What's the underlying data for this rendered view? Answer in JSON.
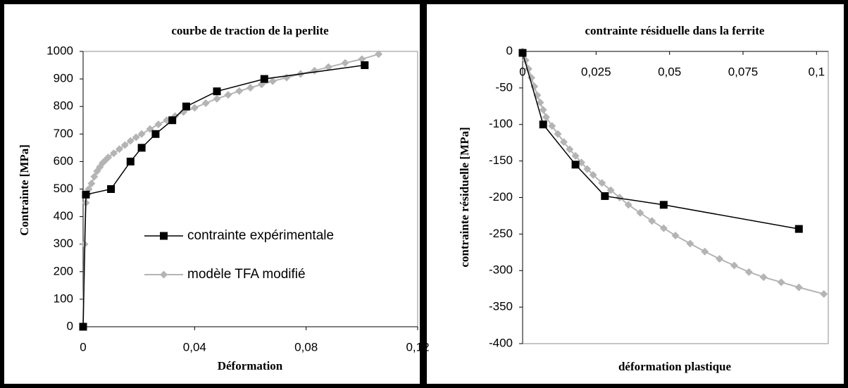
{
  "chart_data": [
    {
      "type": "line",
      "title": "courbe de traction de la perlite",
      "xlabel": "Déformation",
      "ylabel": "Contrainte [MPa]",
      "xlim": [
        0,
        0.12
      ],
      "xticks": [
        0,
        {
          "value": 0.04,
          "label": "0,04"
        },
        {
          "value": 0.08,
          "label": "0,08"
        },
        {
          "value": 0.12,
          "label": "0,12"
        }
      ],
      "ylim": [
        0,
        1000
      ],
      "yticks": [
        0,
        100,
        200,
        300,
        400,
        500,
        600,
        700,
        800,
        900,
        1000
      ],
      "legend": "lower right",
      "series": [
        {
          "name": "contrainte expérimentale",
          "color": "#000000",
          "marker": "square",
          "x": [
            0,
            0.001,
            0.01,
            0.017,
            0.021,
            0.026,
            0.032,
            0.037,
            0.048,
            0.065,
            0.101
          ],
          "values": [
            0,
            480,
            500,
            600,
            650,
            700,
            750,
            800,
            855,
            900,
            950
          ]
        },
        {
          "name": "modèle TFA modifié",
          "color": "#b4b4b4",
          "marker": "diamond",
          "x": [
            0,
            0.0005,
            0.001,
            0.0015,
            0.002,
            0.003,
            0.004,
            0.005,
            0.006,
            0.007,
            0.008,
            0.009,
            0.011,
            0.013,
            0.015,
            0.017,
            0.019,
            0.021,
            0.024,
            0.027,
            0.03,
            0.033,
            0.036,
            0.04,
            0.044,
            0.048,
            0.052,
            0.056,
            0.06,
            0.064,
            0.068,
            0.073,
            0.078,
            0.083,
            0.088,
            0.094,
            0.1,
            0.106
          ],
          "values": [
            0,
            300,
            450,
            480,
            500,
            520,
            545,
            565,
            580,
            595,
            605,
            615,
            630,
            645,
            660,
            675,
            688,
            700,
            718,
            735,
            750,
            765,
            780,
            795,
            812,
            828,
            842,
            856,
            868,
            880,
            892,
            905,
            918,
            930,
            943,
            958,
            972,
            990
          ]
        }
      ]
    },
    {
      "type": "line",
      "title": "contrainte résiduelle dans la ferrite",
      "xlabel": "déformation plastique",
      "ylabel": "contrainte résiduelle  [MPa]",
      "xlim": [
        0,
        0.104
      ],
      "xticks": [
        0,
        {
          "value": 0.025,
          "label": "0,025"
        },
        {
          "value": 0.05,
          "label": "0,05"
        },
        {
          "value": 0.075,
          "label": "0,075"
        },
        {
          "value": 0.1,
          "label": "0,1"
        }
      ],
      "ylim": [
        -400,
        0
      ],
      "yticks": [
        -400,
        -350,
        -300,
        -250,
        -200,
        -150,
        -100,
        -50,
        0
      ],
      "series": [
        {
          "name": "contrainte expérimentale",
          "color": "#000000",
          "marker": "square",
          "x": [
            0,
            0.007,
            0.018,
            0.028,
            0.048,
            0.094
          ],
          "values": [
            -2,
            -100,
            -155,
            -198,
            -210,
            -243
          ]
        },
        {
          "name": "modèle TFA modifié",
          "color": "#b4b4b4",
          "marker": "diamond",
          "x": [
            0,
            0.001,
            0.002,
            0.003,
            0.004,
            0.005,
            0.006,
            0.007,
            0.008,
            0.01,
            0.012,
            0.014,
            0.016,
            0.018,
            0.02,
            0.022,
            0.024,
            0.027,
            0.03,
            0.033,
            0.036,
            0.04,
            0.044,
            0.048,
            0.052,
            0.057,
            0.062,
            0.067,
            0.072,
            0.077,
            0.082,
            0.088,
            0.094,
            0.1025
          ],
          "values": [
            0,
            -12,
            -24,
            -36,
            -48,
            -60,
            -70,
            -80,
            -90,
            -102,
            -113,
            -124,
            -134,
            -143,
            -152,
            -161,
            -169,
            -180,
            -190,
            -200,
            -210,
            -221,
            -232,
            -242,
            -252,
            -263,
            -274,
            -284,
            -293,
            -302,
            -309,
            -316,
            -323,
            -332
          ]
        }
      ]
    }
  ]
}
